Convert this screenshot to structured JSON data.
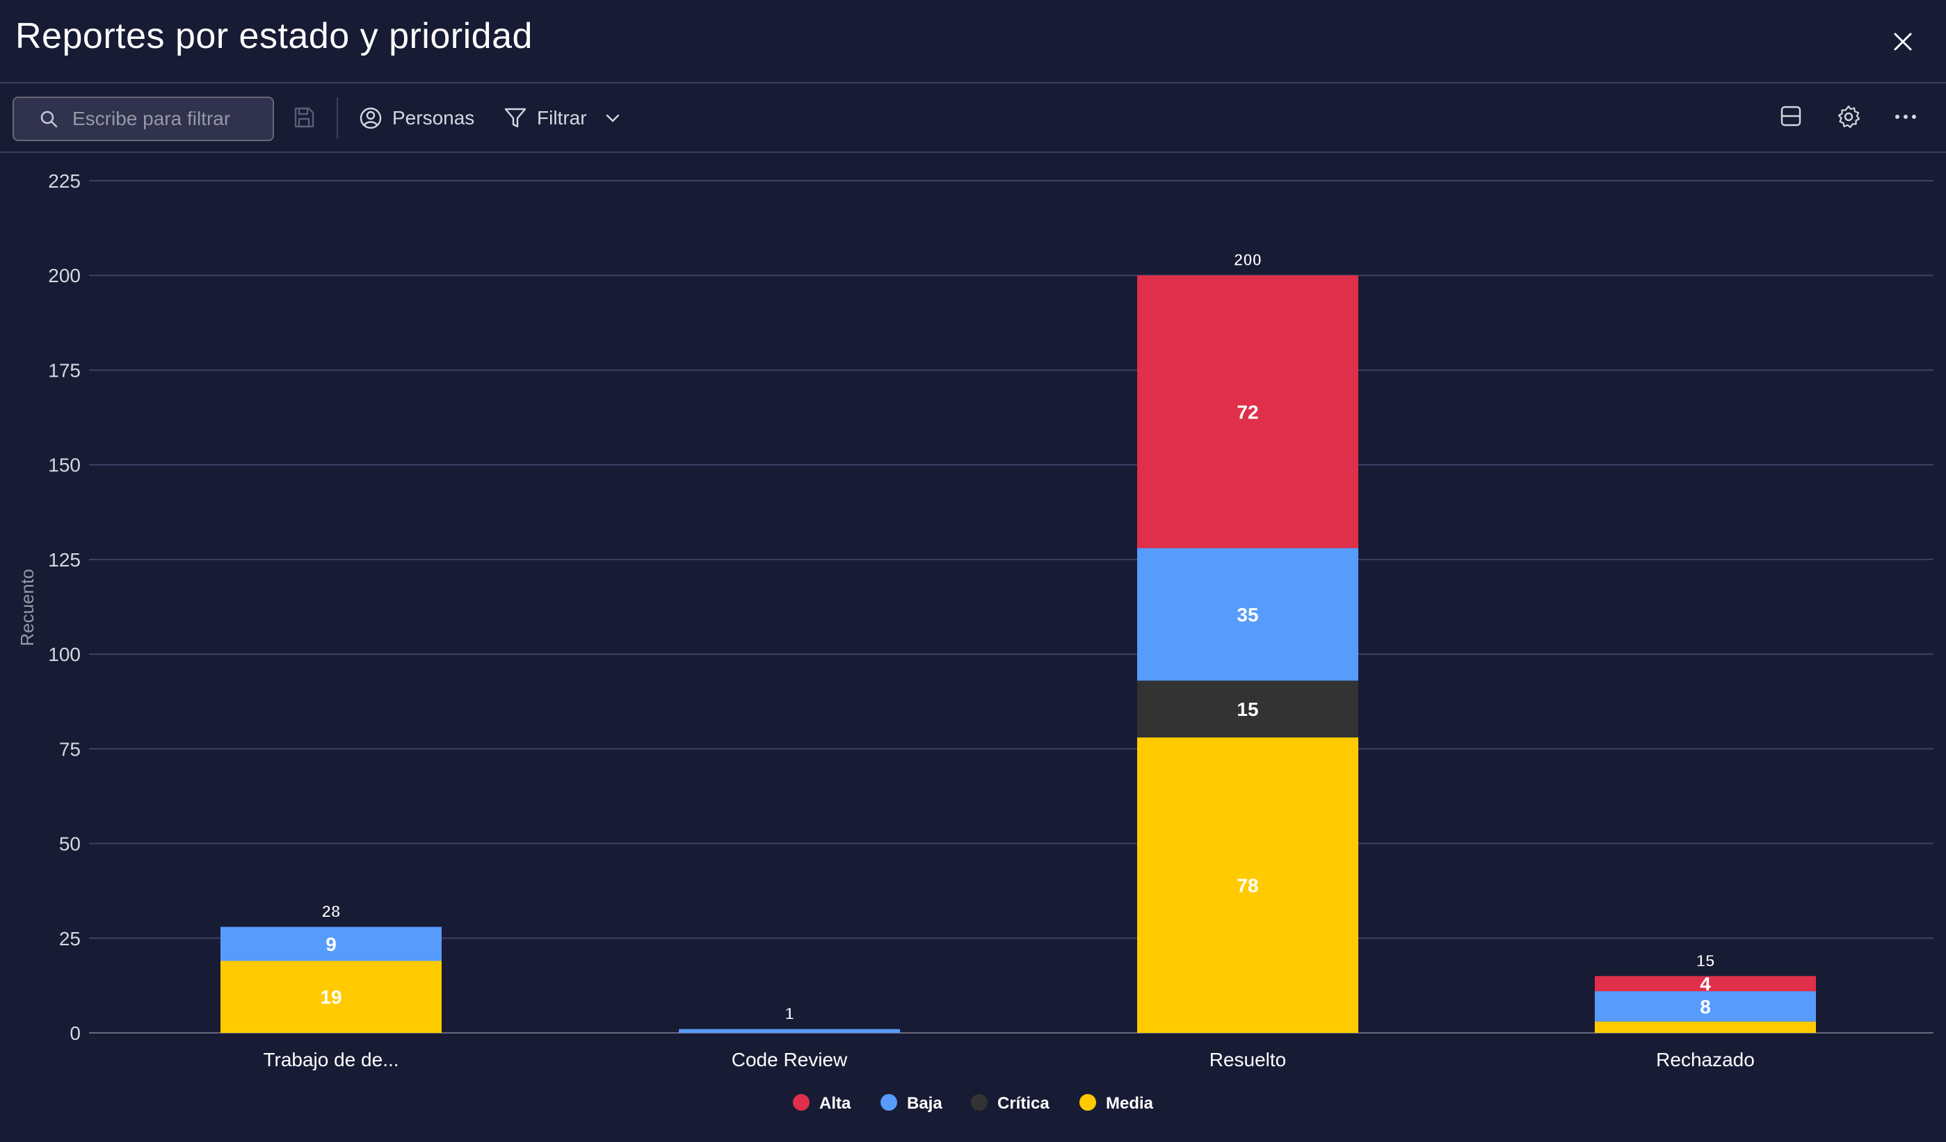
{
  "header": {
    "title": "Reportes por estado y prioridad"
  },
  "toolbar": {
    "search_placeholder": "Escribe para filtrar",
    "persons_label": "Personas",
    "filter_label": "Filtrar"
  },
  "colors": {
    "Alta": "#df2f4a",
    "Baja": "#579bfc",
    "Crítica": "#333333",
    "Media": "#ffcb00"
  },
  "chart_data": {
    "type": "bar",
    "stacked": true,
    "title": "",
    "xlabel": "",
    "ylabel": "Recuento",
    "ylim": [
      0,
      225
    ],
    "yticks": [
      0,
      25,
      50,
      75,
      100,
      125,
      150,
      175,
      200,
      225
    ],
    "categories": [
      "Trabajo de de...",
      "Code Review",
      "Resuelto",
      "Rechazado"
    ],
    "series": [
      {
        "name": "Media",
        "values": [
          19,
          0,
          78,
          3
        ]
      },
      {
        "name": "Crítica",
        "values": [
          0,
          0,
          15,
          0
        ]
      },
      {
        "name": "Baja",
        "values": [
          9,
          1,
          35,
          8
        ]
      },
      {
        "name": "Alta",
        "values": [
          0,
          0,
          72,
          4
        ]
      }
    ],
    "totals": [
      28,
      1,
      200,
      15
    ],
    "legend": [
      "Alta",
      "Baja",
      "Crítica",
      "Media"
    ],
    "legend_position": "bottom"
  }
}
